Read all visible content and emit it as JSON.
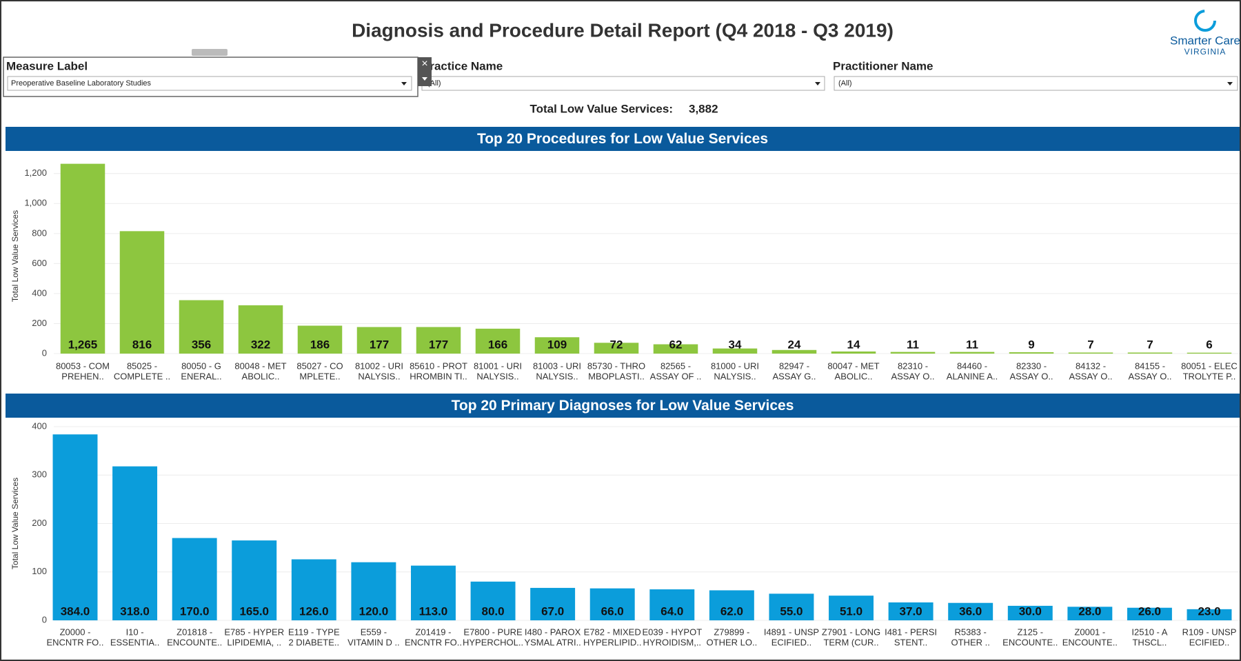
{
  "header": {
    "title": "Diagnosis and Procedure Detail Report (Q4 2018 - Q3 2019)",
    "logo": [
      "Smarter Care",
      "VIRGINIA"
    ]
  },
  "filters": [
    {
      "label": "Measure Label",
      "value": "Preoperative Baseline Laboratory Studies"
    },
    {
      "label": "Practice Name",
      "value": "(All)"
    },
    {
      "label": "Practitioner Name",
      "value": "(All)"
    }
  ],
  "total": {
    "label": "Total Low Value Services:",
    "value": "3,882"
  },
  "chart_data": [
    {
      "type": "bar",
      "title": "Top 20 Procedures for Low Value Services",
      "y_label": "Total Low Value Services",
      "categories": [
        [
          "80053 - COM",
          "PREHEN.."
        ],
        [
          "85025 -",
          "COMPLETE .."
        ],
        [
          "80050 - G",
          "ENERAL.."
        ],
        [
          "80048 - MET",
          "ABOLIC.."
        ],
        [
          "85027 - CO",
          "MPLETE.."
        ],
        [
          "81002 - URI",
          "NALYSIS.."
        ],
        [
          "85610 - PROT",
          "HROMBIN TI.."
        ],
        [
          "81001 - URI",
          "NALYSIS.."
        ],
        [
          "81003 - URI",
          "NALYSIS.."
        ],
        [
          "85730 - THRO",
          "MBOPLASTI.."
        ],
        [
          "82565 -",
          "ASSAY OF .."
        ],
        [
          "81000 - URI",
          "NALYSIS.."
        ],
        [
          "82947 -",
          "ASSAY G.."
        ],
        [
          "80047 - MET",
          "ABOLIC.."
        ],
        [
          "82310 -",
          "ASSAY O.."
        ],
        [
          "84460 -",
          "ALANINE A.."
        ],
        [
          "82330 -",
          "ASSAY O.."
        ],
        [
          "84132 -",
          "ASSAY O.."
        ],
        [
          "84155 -",
          "ASSAY O.."
        ],
        [
          "80051 - ELEC",
          "TROLYTE P.."
        ]
      ],
      "values": [
        1265,
        816,
        356,
        322,
        186,
        177,
        177,
        166,
        109,
        72,
        62,
        34,
        24,
        14,
        11,
        11,
        9,
        7,
        7,
        6
      ],
      "value_labels": [
        "1,265",
        "816",
        "356",
        "322",
        "186",
        "177",
        "177",
        "166",
        "109",
        "72",
        "62",
        "34",
        "24",
        "14",
        "11",
        "11",
        "9",
        "7",
        "7",
        "6"
      ],
      "color": "#8dc63f",
      "ylim": [
        0,
        1300
      ],
      "yticks": [
        0,
        200,
        400,
        600,
        800,
        {
          "value": 1000,
          "label": "1,000"
        },
        {
          "value": 1200,
          "label": "1,200"
        }
      ],
      "grid": true
    },
    {
      "type": "bar",
      "title": "Top 20 Primary Diagnoses for Low Value Services",
      "y_label": "Total Low Value Services",
      "categories": [
        [
          "Z0000 -",
          "ENCNTR FO.."
        ],
        [
          "I10 -",
          "ESSENTIA.."
        ],
        [
          "Z01818 -",
          "ENCOUNTE.."
        ],
        [
          "E785 - HYPER",
          "LIPIDEMIA, .."
        ],
        [
          "E119 - TYPE",
          "2 DIABETE.."
        ],
        [
          "E559 -",
          "VITAMIN D .."
        ],
        [
          "Z01419 -",
          "ENCNTR FO.."
        ],
        [
          "E7800 - PURE",
          "HYPERCHOL.."
        ],
        [
          "I480 - PAROX",
          "YSMAL ATRI.."
        ],
        [
          "E782 - MIXED",
          "HYPERLIPID.."
        ],
        [
          "E039 - HYPOT",
          "HYROIDISM,.."
        ],
        [
          "Z79899 -",
          "OTHER LO.."
        ],
        [
          "I4891 - UNSP",
          "ECIFIED.."
        ],
        [
          "Z7901 - LONG",
          "TERM (CUR.."
        ],
        [
          "I481 - PERSI",
          "STENT.."
        ],
        [
          "R5383 -",
          "OTHER .."
        ],
        [
          "Z125 -",
          "ENCOUNTE.."
        ],
        [
          "Z0001 -",
          "ENCOUNTE.."
        ],
        [
          "I2510 - A",
          "THSCL.."
        ],
        [
          "R109 - UNSP",
          "ECIFIED.."
        ]
      ],
      "values": [
        384,
        318,
        170,
        165,
        126,
        120,
        113,
        80,
        67,
        66,
        64,
        62,
        55,
        51,
        37,
        36,
        30,
        28,
        26,
        23
      ],
      "value_labels": [
        "384.0",
        "318.0",
        "170.0",
        "165.0",
        "126.0",
        "120.0",
        "113.0",
        "80.0",
        "67.0",
        "66.0",
        "64.0",
        "62.0",
        "55.0",
        "51.0",
        "37.0",
        "36.0",
        "30.0",
        "28.0",
        "26.0",
        "23.0"
      ],
      "color": "#0b9ddb",
      "ylim": [
        0,
        400
      ],
      "yticks": [
        0,
        100,
        200,
        300,
        400
      ],
      "grid": true
    }
  ]
}
